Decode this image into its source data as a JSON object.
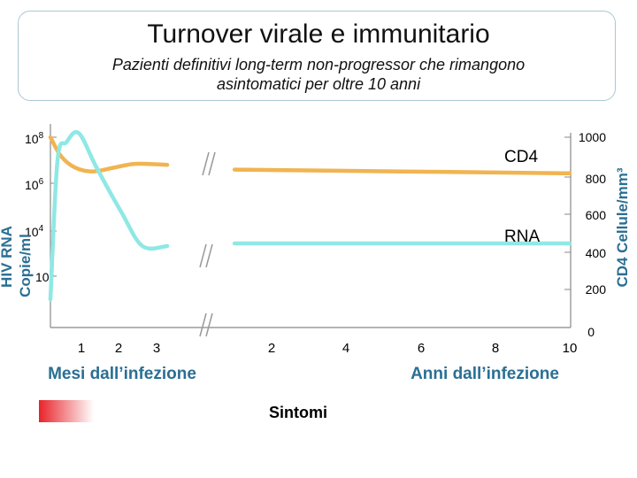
{
  "header": {
    "title": "Turnover virale e immunitario",
    "subtitle_line1": "Pazienti definitivi long-term non-progressor che rimangono",
    "subtitle_line2": "asintomatici per oltre 10 anni"
  },
  "chart_data": {
    "type": "line",
    "left_axis": {
      "label_line1": "HIV RNA",
      "label_line2": "Copie/ml",
      "ticks": [
        {
          "base": "10",
          "exp": "8",
          "value": 100000000
        },
        {
          "base": "10",
          "exp": "6",
          "value": 1000000
        },
        {
          "base": "10",
          "exp": "4",
          "value": 10000
        },
        {
          "base": "10",
          "exp": "2",
          "value": 100
        }
      ],
      "scale": "log"
    },
    "right_axis": {
      "label": "CD4 Cellule/mm³",
      "ticks": [
        "1000",
        "800",
        "600",
        "400",
        "200",
        "0"
      ],
      "range": [
        0,
        1000
      ]
    },
    "x_axis": {
      "months_label": "Mesi dall’infezione",
      "months_ticks": [
        "1",
        "2",
        "3"
      ],
      "years_label": "Anni dall’infezione",
      "years_ticks": [
        "2",
        "4",
        "6",
        "8",
        "10"
      ]
    },
    "series": [
      {
        "name": "CD4",
        "color": "#f0b451",
        "axis": "right",
        "points": [
          {
            "t": 0.0,
            "v": 1000
          },
          {
            "t": 0.3,
            "v": 900
          },
          {
            "t": 0.7,
            "v": 840
          },
          {
            "t": 1.2,
            "v": 820
          },
          {
            "t": 1.8,
            "v": 840
          },
          {
            "t": 2.4,
            "v": 860
          },
          {
            "t": 3.3,
            "v": 855
          },
          {
            "t": 1.0,
            "v": 830,
            "period": "years"
          },
          {
            "t": 10.0,
            "v": 810,
            "period": "years"
          }
        ]
      },
      {
        "name": "RNA",
        "color": "#8fe8e4",
        "axis": "left",
        "points": [
          {
            "t": 0.0,
            "v": 10
          },
          {
            "t": 0.2,
            "v": 10000000
          },
          {
            "t": 0.45,
            "v": 60000000
          },
          {
            "t": 0.8,
            "v": 150000000
          },
          {
            "t": 1.3,
            "v": 5000000
          },
          {
            "t": 2.0,
            "v": 60000
          },
          {
            "t": 2.6,
            "v": 2000
          },
          {
            "t": 3.3,
            "v": 2000
          },
          {
            "t": 1.0,
            "v": 2600,
            "period": "years"
          },
          {
            "t": 10.0,
            "v": 2600,
            "period": "years"
          }
        ]
      }
    ],
    "annotations": [
      "Sintomi"
    ]
  }
}
